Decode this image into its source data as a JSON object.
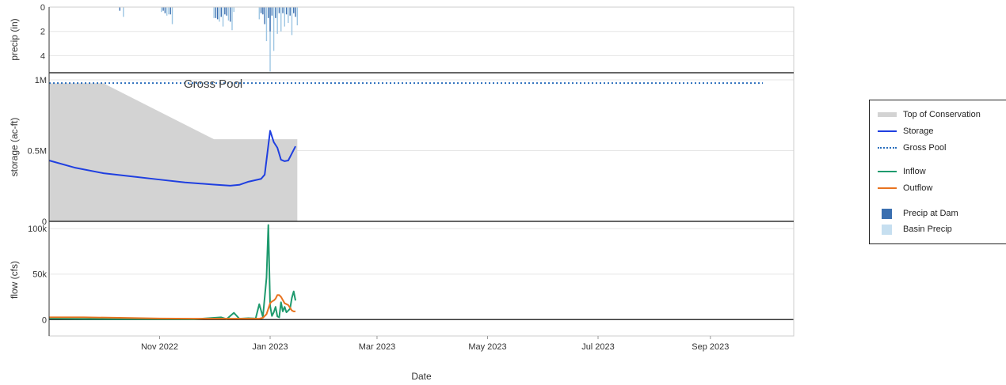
{
  "chart_data": [
    {
      "type": "bar",
      "ylabel": "precip (in)",
      "ylim": [
        5.4,
        0
      ],
      "yticks": [
        0,
        2,
        4
      ],
      "series": [
        {
          "name": "Precip at Dam",
          "color": "#3a6fb0",
          "x": [
            "2022-10-10",
            "2022-11-03",
            "2022-11-04",
            "2022-11-07",
            "2022-12-02",
            "2022-12-03",
            "2022-12-05",
            "2022-12-07",
            "2022-12-08",
            "2022-12-10",
            "2022-12-27",
            "2022-12-28",
            "2022-12-29",
            "2022-12-31",
            "2023-01-01",
            "2023-01-02",
            "2023-01-04",
            "2023-01-06",
            "2023-01-08",
            "2023-01-10",
            "2023-01-12",
            "2023-01-14",
            "2023-01-15"
          ],
          "values": [
            0.3,
            0.3,
            0.5,
            0.6,
            0.9,
            1.0,
            0.8,
            0.6,
            0.7,
            1.2,
            0.5,
            0.6,
            1.4,
            0.9,
            2.0,
            0.7,
            0.9,
            0.5,
            0.5,
            0.6,
            0.7,
            0.5,
            0.8
          ]
        },
        {
          "name": "Basin Precip",
          "color": "#9ec6e3",
          "x": [
            "2022-10-12",
            "2022-11-02",
            "2022-11-05",
            "2022-11-06",
            "2022-11-08",
            "2022-12-01",
            "2022-12-04",
            "2022-12-06",
            "2022-12-09",
            "2022-12-11",
            "2022-12-12",
            "2022-12-26",
            "2022-12-30",
            "2023-01-01",
            "2023-01-03",
            "2023-01-05",
            "2023-01-07",
            "2023-01-09",
            "2023-01-11",
            "2023-01-13",
            "2023-01-16"
          ],
          "values": [
            0.8,
            0.4,
            0.7,
            0.6,
            1.4,
            0.9,
            1.2,
            1.6,
            1.1,
            1.9,
            0.4,
            1.0,
            2.8,
            5.3,
            3.6,
            2.2,
            2.0,
            1.6,
            1.3,
            2.3,
            1.5
          ]
        }
      ]
    },
    {
      "type": "area",
      "ylabel": "storage (ac-ft)",
      "ylim": [
        0,
        1050000
      ],
      "ytick_labels": [
        "0",
        "0.5M",
        "1M"
      ],
      "yticks": [
        0,
        500000,
        1000000
      ],
      "annotations": [
        "Gross Pool"
      ],
      "series": [
        {
          "name": "Top of Conservation",
          "color": "#d3d3d3",
          "x": [
            "2022-09-01",
            "2022-10-01",
            "2022-12-01",
            "2023-01-16"
          ],
          "values": [
            975000,
            975000,
            580000,
            580000
          ]
        },
        {
          "name": "Storage",
          "color": "#1f3fe0",
          "x": [
            "2022-09-01",
            "2022-09-15",
            "2022-10-01",
            "2022-10-15",
            "2022-11-01",
            "2022-11-15",
            "2022-12-01",
            "2022-12-10",
            "2022-12-15",
            "2022-12-20",
            "2022-12-27",
            "2022-12-29",
            "2023-01-01",
            "2023-01-03",
            "2023-01-05",
            "2023-01-07",
            "2023-01-09",
            "2023-01-11",
            "2023-01-13",
            "2023-01-15"
          ],
          "values": [
            430000,
            380000,
            340000,
            320000,
            295000,
            275000,
            260000,
            252000,
            258000,
            280000,
            300000,
            330000,
            640000,
            560000,
            520000,
            435000,
            425000,
            430000,
            480000,
            530000
          ]
        },
        {
          "name": "Gross Pool",
          "color": "#2b6fbd",
          "x": [
            "2022-09-01",
            "2023-09-30"
          ],
          "values": [
            977000,
            977000
          ]
        }
      ]
    },
    {
      "type": "line",
      "ylabel": "flow (cfs)",
      "ylim": [
        -18000,
        108000
      ],
      "ytick_labels": [
        "0",
        "50k",
        "100k"
      ],
      "yticks": [
        0,
        50000,
        100000
      ],
      "xlabel": "Date",
      "xtick_labels": [
        "Nov 2022",
        "Jan 2023",
        "Mar 2023",
        "May 2023",
        "Jul 2023",
        "Sep 2023"
      ],
      "series": [
        {
          "name": "Inflow",
          "color": "#1f9a6e",
          "x": [
            "2022-09-01",
            "2022-09-20",
            "2022-10-10",
            "2022-11-01",
            "2022-11-20",
            "2022-12-05",
            "2022-12-08",
            "2022-12-12",
            "2022-12-15",
            "2022-12-20",
            "2022-12-24",
            "2022-12-26",
            "2022-12-28",
            "2022-12-30",
            "2022-12-31",
            "2023-01-01",
            "2023-01-02",
            "2023-01-03",
            "2023-01-04",
            "2023-01-05",
            "2023-01-06",
            "2023-01-07",
            "2023-01-08",
            "2023-01-09",
            "2023-01-10",
            "2023-01-11",
            "2023-01-12",
            "2023-01-13",
            "2023-01-14",
            "2023-01-15"
          ],
          "values": [
            1200,
            800,
            600,
            500,
            400,
            2500,
            600,
            7500,
            1000,
            1500,
            1200,
            17000,
            3000,
            46000,
            104000,
            15000,
            4000,
            8000,
            14000,
            3500,
            2500,
            19000,
            9000,
            14000,
            8000,
            10000,
            12000,
            24000,
            31000,
            21000
          ]
        },
        {
          "name": "Outflow",
          "color": "#e8731f",
          "x": [
            "2022-09-01",
            "2022-09-20",
            "2022-10-10",
            "2022-11-01",
            "2022-11-20",
            "2022-12-10",
            "2022-12-20",
            "2022-12-26",
            "2022-12-28",
            "2022-12-30",
            "2023-01-01",
            "2023-01-02",
            "2023-01-03",
            "2023-01-04",
            "2023-01-05",
            "2023-01-06",
            "2023-01-07",
            "2023-01-09",
            "2023-01-11",
            "2023-01-13",
            "2023-01-14",
            "2023-01-15"
          ],
          "values": [
            2500,
            2500,
            2000,
            1200,
            1000,
            1000,
            1000,
            1000,
            2000,
            6000,
            18000,
            20000,
            21000,
            23000,
            27000,
            27000,
            25000,
            18000,
            16000,
            10000,
            9000,
            9000
          ]
        }
      ]
    }
  ],
  "x_range": [
    "2022-09-01",
    "2023-10-17"
  ]
}
